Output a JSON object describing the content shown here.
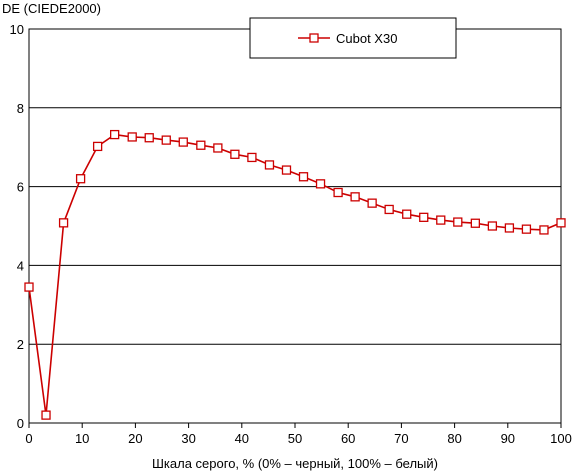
{
  "chart_data": {
    "type": "line",
    "ylabel": "DE (CIEDE2000)",
    "xlabel": "Шкала серого, % (0% – черный, 100% – белый)",
    "xlim": [
      0,
      100
    ],
    "ylim": [
      0,
      10
    ],
    "x_ticks": [
      "0",
      "10",
      "20",
      "30",
      "40",
      "50",
      "60",
      "70",
      "80",
      "90",
      "100"
    ],
    "y_ticks": [
      "0",
      "2",
      "4",
      "6",
      "8",
      "10"
    ],
    "grid": "horizontal",
    "legend_position": "top-right",
    "series_color": "#cc0000",
    "series": [
      {
        "name": "Cubot X30",
        "x": [
          0,
          3.2,
          6.5,
          9.7,
          12.9,
          16.1,
          19.4,
          22.6,
          25.8,
          29.0,
          32.3,
          35.5,
          38.7,
          41.9,
          45.2,
          48.4,
          51.6,
          54.8,
          58.1,
          61.3,
          64.5,
          67.7,
          71.0,
          74.2,
          77.4,
          80.6,
          83.9,
          87.1,
          90.3,
          93.5,
          96.8,
          100
        ],
        "values": [
          3.45,
          0.2,
          5.08,
          6.2,
          7.02,
          7.32,
          7.26,
          7.24,
          7.18,
          7.13,
          7.05,
          6.98,
          6.82,
          6.74,
          6.55,
          6.42,
          6.25,
          6.07,
          5.85,
          5.74,
          5.58,
          5.42,
          5.3,
          5.22,
          5.15,
          5.1,
          5.07,
          5.0,
          4.95,
          4.92,
          4.9,
          5.08
        ]
      }
    ]
  }
}
